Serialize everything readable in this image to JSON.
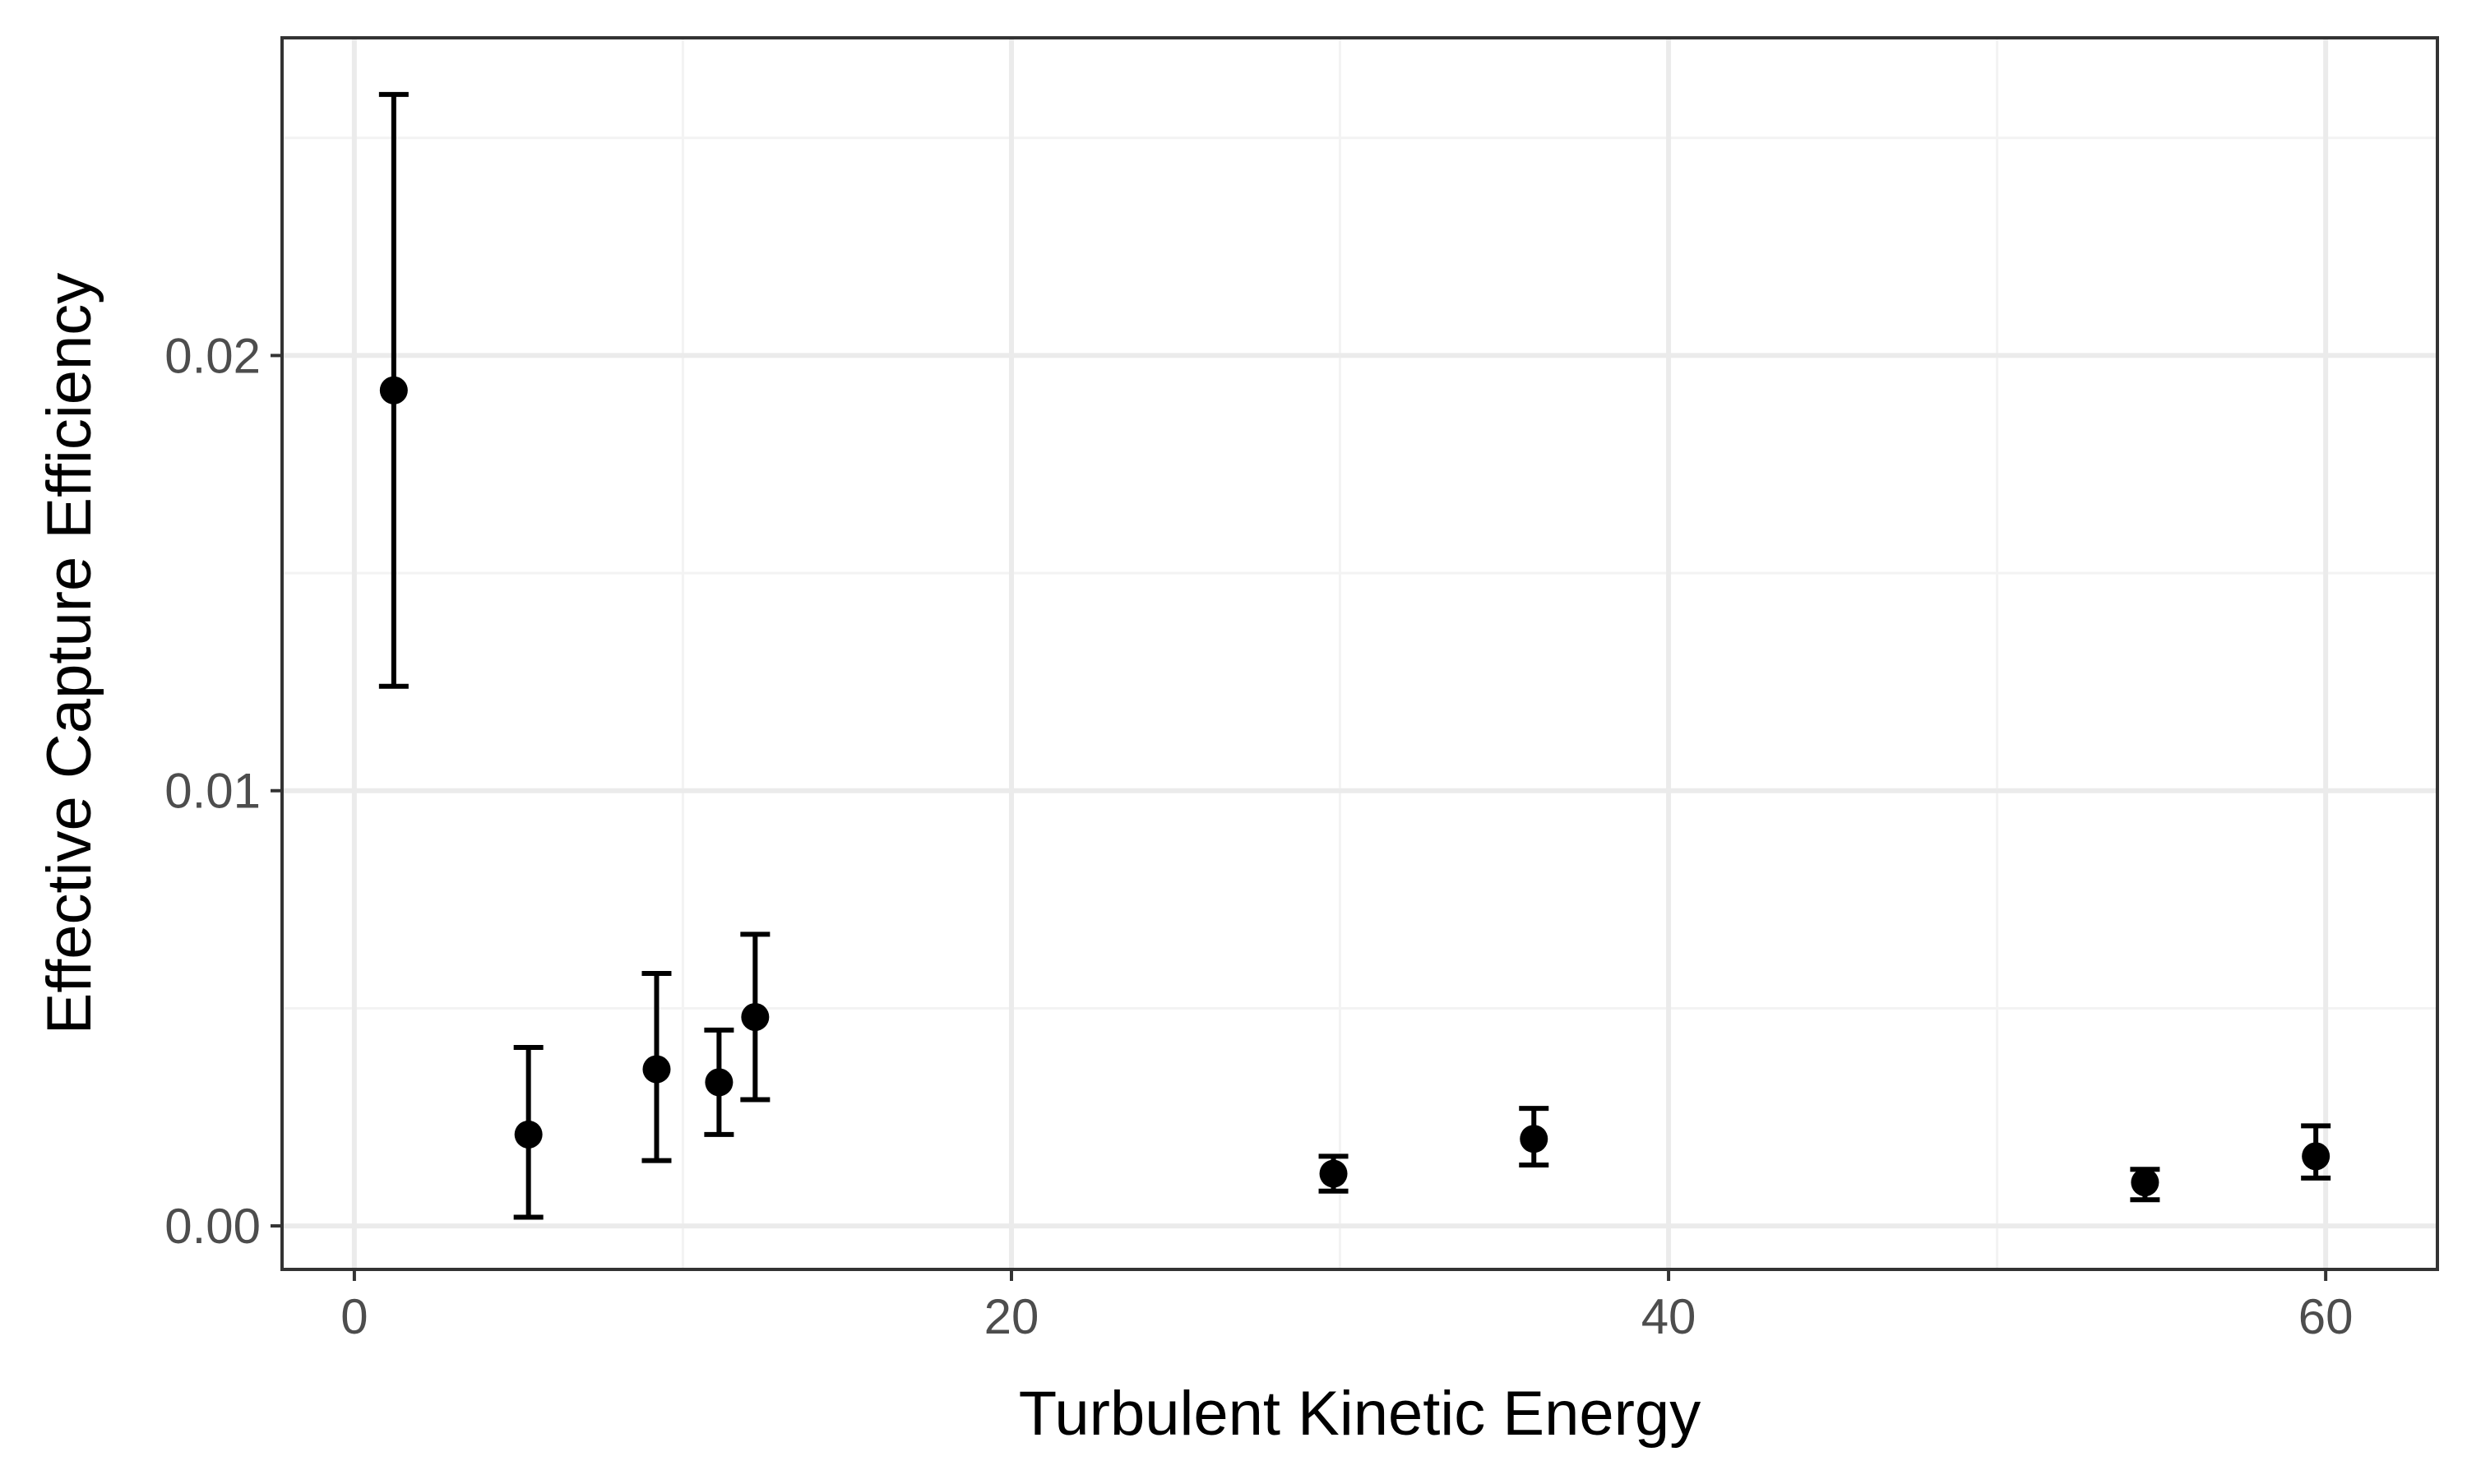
{
  "chart_data": {
    "type": "scatter",
    "title": "",
    "xlabel": "Turbulent Kinetic Energy",
    "ylabel": "Effective Capture Efficiency",
    "xlim": [
      -2.2,
      63.4
    ],
    "ylim": [
      -0.001,
      0.0273
    ],
    "x_ticks": [
      0,
      20,
      40,
      60
    ],
    "x_tick_labels": [
      "0",
      "20",
      "40",
      "60"
    ],
    "x_minor_ticks": [
      10,
      30,
      50
    ],
    "y_ticks": [
      0.0,
      0.01,
      0.02
    ],
    "y_tick_labels": [
      "0.00",
      "0.01",
      "0.02"
    ],
    "y_minor_ticks": [
      0.005,
      0.015,
      0.025
    ],
    "grid": true,
    "legend": "none",
    "series": [
      {
        "points": [
          {
            "x": 1.2,
            "y": 0.0192,
            "ymin": 0.0124,
            "ymax": 0.026
          },
          {
            "x": 5.3,
            "y": 0.0021,
            "ymin": 0.0002,
            "ymax": 0.0041
          },
          {
            "x": 9.2,
            "y": 0.0036,
            "ymin": 0.0015,
            "ymax": 0.0058
          },
          {
            "x": 11.1,
            "y": 0.0033,
            "ymin": 0.0021,
            "ymax": 0.0045
          },
          {
            "x": 12.2,
            "y": 0.0048,
            "ymin": 0.0029,
            "ymax": 0.0067
          },
          {
            "x": 29.8,
            "y": 0.0012,
            "ymin": 0.0008,
            "ymax": 0.0016
          },
          {
            "x": 35.9,
            "y": 0.002,
            "ymin": 0.0014,
            "ymax": 0.0027
          },
          {
            "x": 54.5,
            "y": 0.001,
            "ymin": 0.0006,
            "ymax": 0.0013
          },
          {
            "x": 59.7,
            "y": 0.0016,
            "ymin": 0.0011,
            "ymax": 0.0023
          }
        ]
      }
    ],
    "colors": {
      "panel_border": "#333333",
      "grid_major": "#ebebeb",
      "grid_minor": "#f3f3f3",
      "point": "#000000"
    }
  }
}
